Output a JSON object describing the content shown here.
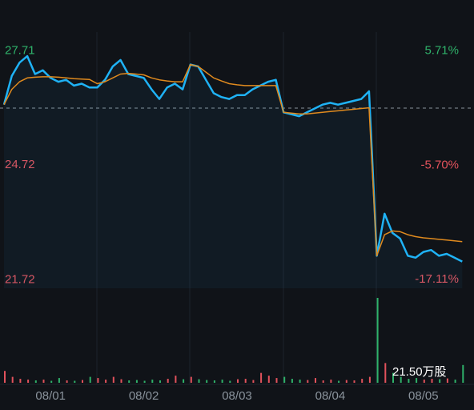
{
  "chart_data": {
    "type": "line",
    "x": [
      0,
      1,
      2,
      3,
      4,
      5,
      6,
      7,
      8,
      9,
      10,
      11,
      12,
      13,
      14,
      15,
      16,
      17,
      18,
      19,
      20,
      21,
      22,
      23,
      24,
      25,
      26,
      27,
      28,
      29,
      30,
      31,
      32,
      33,
      34,
      35,
      36,
      37,
      38,
      39,
      40,
      41,
      42,
      43,
      44,
      45,
      46,
      47,
      48,
      49,
      50,
      51,
      52,
      53,
      54,
      55,
      56,
      57,
      58,
      59
    ],
    "xlim": [
      0,
      60
    ],
    "xticks": [
      {
        "value": 6,
        "label": "08/01"
      },
      {
        "value": 18,
        "label": "08/02"
      },
      {
        "value": 30,
        "label": "08/03"
      },
      {
        "value": 42,
        "label": "08/04"
      },
      {
        "value": 54,
        "label": "08/05"
      }
    ],
    "ylim": [
      21.5,
      28.2
    ],
    "yticks": [
      27.71,
      24.72,
      21.72
    ],
    "y2lim": [
      -17.97,
      7.59
    ],
    "y2ticks": [
      {
        "value": 5.71,
        "label": "5.71%"
      },
      {
        "value": -5.7,
        "label": "-5.70%"
      },
      {
        "value": -17.11,
        "label": "-17.11%"
      }
    ],
    "reference_line": 26.21,
    "up_color": "#2fb26a",
    "down_color": "#e2525c",
    "series": [
      {
        "color": "#1fb2f5",
        "values": [
          26.3,
          27.05,
          27.4,
          27.57,
          27.1,
          27.2,
          27.0,
          26.9,
          26.95,
          26.8,
          26.85,
          26.75,
          26.75,
          26.95,
          27.3,
          27.47,
          27.1,
          27.05,
          27.0,
          26.7,
          26.45,
          26.75,
          26.85,
          26.7,
          27.35,
          27.3,
          26.95,
          26.6,
          26.5,
          26.45,
          26.55,
          26.55,
          26.7,
          26.8,
          26.9,
          26.95,
          26.1,
          26.05,
          26.0,
          26.1,
          26.2,
          26.3,
          26.35,
          26.3,
          26.35,
          26.4,
          26.45,
          26.65,
          22.35,
          23.45,
          22.95,
          22.8,
          22.35,
          22.3,
          22.45,
          22.5,
          22.35,
          22.4,
          22.3,
          22.2
        ]
      },
      {
        "color": "#e08a1e",
        "values": [
          26.3,
          26.7,
          26.9,
          27.0,
          27.02,
          27.03,
          27.03,
          27.02,
          27.0,
          26.98,
          26.97,
          26.96,
          26.85,
          26.9,
          27.0,
          27.1,
          27.12,
          27.1,
          27.08,
          27.0,
          26.95,
          26.92,
          26.9,
          26.9,
          27.35,
          27.3,
          27.15,
          27.0,
          26.92,
          26.85,
          26.82,
          26.8,
          26.8,
          26.8,
          26.8,
          26.8,
          26.1,
          26.08,
          26.06,
          26.06,
          26.08,
          26.1,
          26.12,
          26.14,
          26.16,
          26.18,
          26.2,
          26.22,
          22.35,
          22.9,
          23.0,
          22.98,
          22.9,
          22.85,
          22.82,
          22.8,
          22.78,
          22.76,
          22.74,
          22.72
        ]
      }
    ],
    "volume": {
      "label": "21.50万股",
      "ylim": [
        0,
        21.5
      ],
      "values": [
        3,
        1.5,
        1,
        0.8,
        0.6,
        0.8,
        0.5,
        1.2,
        0.6,
        0.5,
        0.7,
        1.5,
        1.2,
        0.8,
        1.5,
        0.9,
        0.6,
        0.7,
        0.5,
        0.8,
        0.6,
        1.0,
        1.8,
        0.9,
        1.5,
        0.9,
        0.7,
        0.6,
        0.8,
        0.5,
        0.9,
        1.0,
        0.7,
        2.5,
        1.8,
        1.2,
        1.5,
        1.0,
        0.8,
        0.7,
        1.2,
        0.6,
        0.8,
        0.5,
        0.7,
        0.6,
        1.0,
        1.5,
        21.5,
        5.0,
        2.5,
        1.5,
        1.0,
        1.2,
        0.8,
        1.0,
        0.9,
        1.1,
        0.8,
        4.5
      ]
    }
  }
}
